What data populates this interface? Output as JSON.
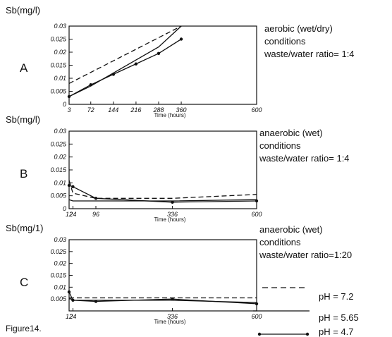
{
  "figure_label": "Figure14.",
  "legend": [
    {
      "label": "pH = 7.2",
      "style": "dashed"
    },
    {
      "label": "pH = 5.65",
      "style": "solid"
    },
    {
      "label": "pH = 4.7",
      "style": "dots"
    }
  ],
  "colors": {
    "ink": "#111111"
  },
  "chart_data": [
    {
      "type": "line",
      "panel": "A",
      "ylabel": "Sb(mg/l)",
      "xlabel": "Time (hours)",
      "xlim": [
        3,
        600
      ],
      "ylim": [
        0,
        0.03
      ],
      "xticks": [
        3,
        72,
        144,
        216,
        288,
        360,
        600
      ],
      "xtick_labels": [
        "3",
        "72",
        "144",
        "216",
        "288",
        "360",
        "600"
      ],
      "yticks": [
        0,
        0.005,
        0.01,
        0.015,
        0.02,
        0.025,
        0.03
      ],
      "ytick_labels": [
        "0",
        "0.005",
        "0.01",
        "0.015",
        "0.02",
        "0.025",
        "0.03"
      ],
      "annotation": [
        "aerobic (wet/dry)",
        "conditions",
        "waste/water ratio= 1:4"
      ],
      "series": [
        {
          "name": "pH = 7.2",
          "style": "dashed",
          "x": [
            3,
            360
          ],
          "y": [
            0.008,
            0.03
          ]
        },
        {
          "name": "pH = 5.65",
          "style": "solid",
          "x": [
            3,
            72,
            144,
            216,
            288,
            360
          ],
          "y": [
            0.003,
            0.007,
            0.012,
            0.017,
            0.022,
            0.03
          ]
        },
        {
          "name": "pH = 4.7",
          "style": "dots",
          "x": [
            3,
            72,
            144,
            216,
            288,
            360
          ],
          "y": [
            0.003,
            0.0075,
            0.0115,
            0.0155,
            0.0195,
            0.025
          ]
        }
      ]
    },
    {
      "type": "line",
      "panel": "B",
      "ylabel": "Sb(mg/l)",
      "xlabel": "Time (hours)",
      "xlim": [
        12,
        600
      ],
      "ylim": [
        0,
        0.03
      ],
      "xticks": [
        12,
        24,
        96,
        336,
        600
      ],
      "xtick_labels": [
        "12",
        "24",
        "96",
        "336",
        "600"
      ],
      "yticks": [
        0,
        0.005,
        0.01,
        0.015,
        0.02,
        0.025,
        0.03
      ],
      "ytick_labels": [
        "0",
        "0.005",
        "0.01",
        "0.015",
        "0.02",
        "0.025",
        "0.03"
      ],
      "annotation": [
        "anaerobic (wet)",
        "conditions",
        "waste/water ratio= 1:4"
      ],
      "series": [
        {
          "name": "pH = 7.2",
          "style": "dashed",
          "x": [
            12,
            24,
            96,
            336,
            600
          ],
          "y": [
            0.011,
            0.006,
            0.004,
            0.004,
            0.0055
          ]
        },
        {
          "name": "pH = 5.65",
          "style": "solid",
          "x": [
            12,
            24,
            96,
            336,
            600
          ],
          "y": [
            0.0035,
            0.003,
            0.003,
            0.003,
            0.0035
          ]
        },
        {
          "name": "pH = 4.7",
          "style": "dots",
          "x": [
            12,
            24,
            96,
            336,
            600
          ],
          "y": [
            0.009,
            0.0085,
            0.004,
            0.0025,
            0.003
          ]
        }
      ]
    },
    {
      "type": "line",
      "panel": "C",
      "ylabel": "Sb(mg/1)",
      "xlabel": "Time (hours)",
      "xlim": [
        12,
        600
      ],
      "ylim": [
        0,
        0.03
      ],
      "xticks": [
        12,
        24,
        336,
        600
      ],
      "xtick_labels": [
        "12",
        "24",
        "336",
        "600"
      ],
      "yticks": [
        0.005,
        0.01,
        0.015,
        0.02,
        0.025,
        0.03
      ],
      "ytick_labels": [
        "0.005",
        "0.01",
        "0.015",
        "0.02",
        "0.025",
        "0.03"
      ],
      "annotation": [
        "anaerobic (wet)",
        "conditions",
        "waste/water ratio=1:20"
      ],
      "series": [
        {
          "name": "pH = 7.2",
          "style": "dashed",
          "x": [
            12,
            24,
            96,
            336,
            600
          ],
          "y": [
            0.0055,
            0.0055,
            0.0055,
            0.0055,
            0.0055
          ]
        },
        {
          "name": "pH = 5.65",
          "style": "solid",
          "x": [
            12,
            24,
            96,
            336,
            600
          ],
          "y": [
            0.0055,
            0.0045,
            0.0045,
            0.0045,
            0.0035
          ]
        },
        {
          "name": "pH = 4.7",
          "style": "dots",
          "x": [
            12,
            24,
            96,
            336,
            600
          ],
          "y": [
            0.008,
            0.0045,
            0.004,
            0.005,
            0.003
          ]
        }
      ]
    }
  ]
}
